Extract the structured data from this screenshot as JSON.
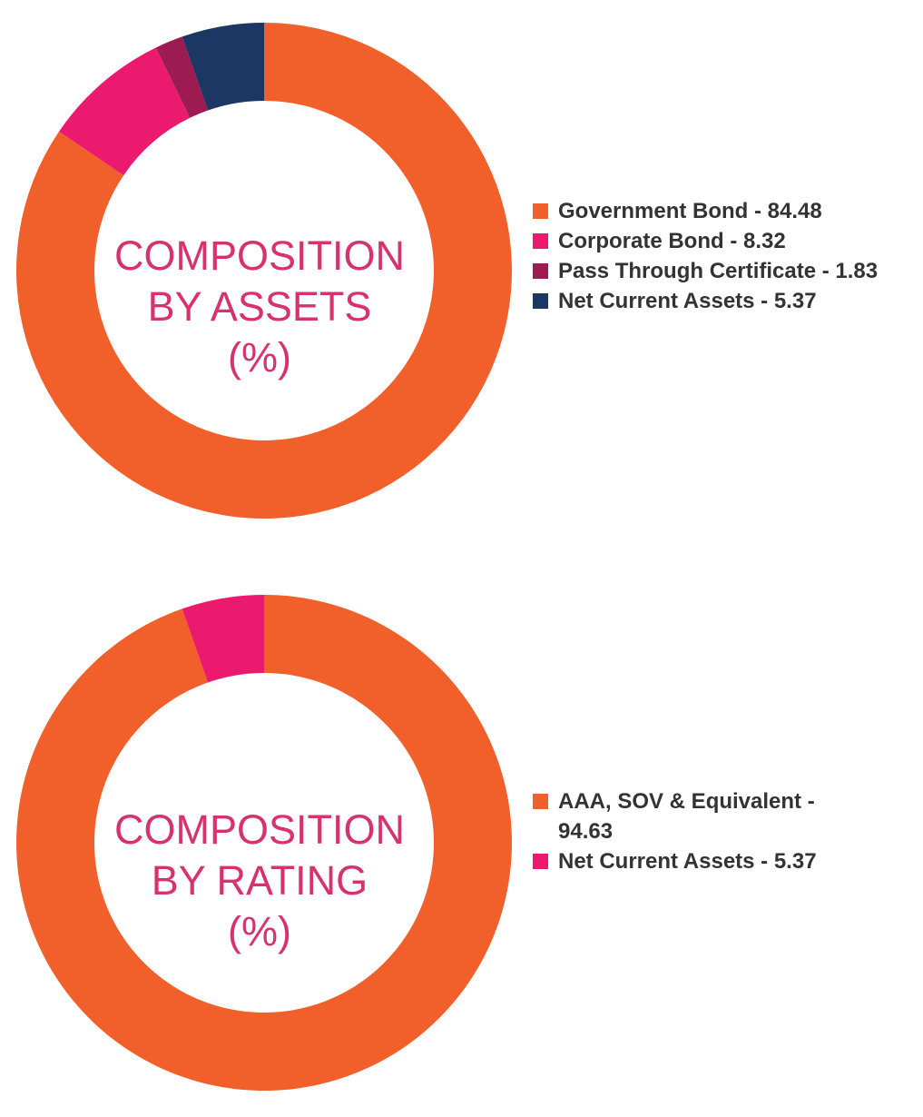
{
  "chart_data": [
    {
      "type": "pie",
      "title": "COMPOSITION BY ASSETS (%)",
      "title_lines": [
        "COMPOSITION",
        "BY ASSETS",
        "(%)"
      ],
      "categories": [
        "Government Bond",
        "Corporate Bond",
        "Pass Through Certificate",
        "Net Current Assets"
      ],
      "values": [
        84.48,
        8.32,
        1.83,
        5.37
      ],
      "colors": [
        "#f15f2a",
        "#ec1a6e",
        "#9c1c52",
        "#1c3764"
      ],
      "legend_labels": [
        "Government Bond - 84.48",
        "Corporate Bond - 8.32",
        "Pass Through Certificate - 1.83",
        "Net Current Assets - 5.37"
      ],
      "legend_position": "right"
    },
    {
      "type": "pie",
      "title": "COMPOSITION BY RATING (%)",
      "title_lines": [
        "COMPOSITION",
        "BY RATING",
        "(%)"
      ],
      "categories": [
        "AAA, SOV & Equivalent",
        "Net Current Assets"
      ],
      "values": [
        94.63,
        5.37
      ],
      "colors": [
        "#f15f2a",
        "#ec1a6e"
      ],
      "legend_labels": [
        "AAA, SOV & Equivalent - 94.63",
        "Net Current Assets - 5.37"
      ],
      "legend_position": "right"
    }
  ],
  "theme": {
    "title_color": "#d6336c",
    "legend_text_color": "#333333"
  }
}
